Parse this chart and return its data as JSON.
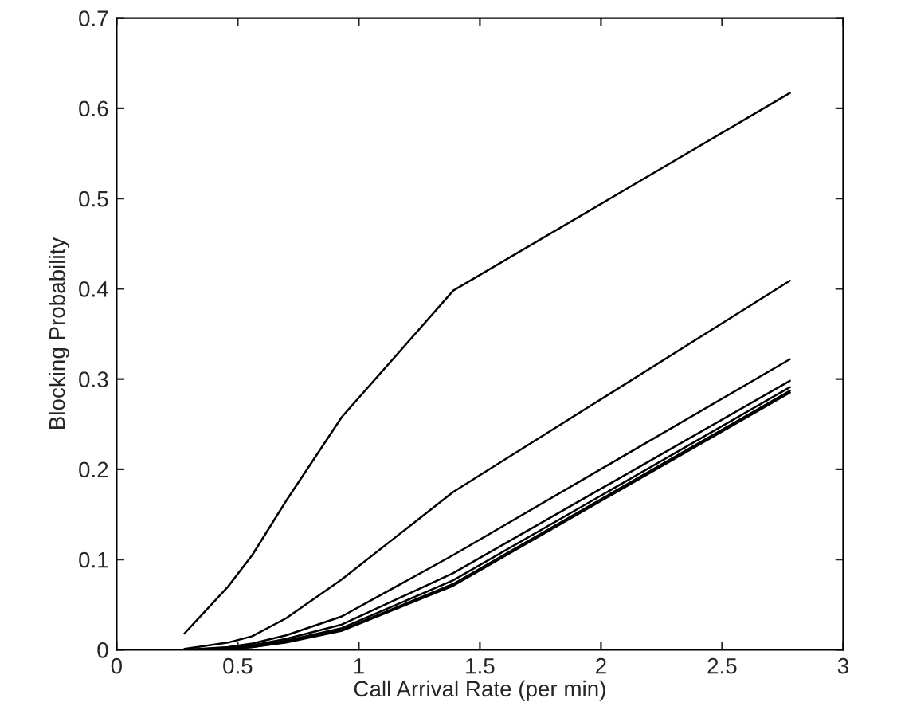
{
  "chart_data": {
    "type": "line",
    "xlabel": "Call Arrival Rate (per min)",
    "ylabel": "Blocking Probability",
    "x": [
      0.28,
      0.46,
      0.56,
      0.7,
      0.93,
      1.39,
      2.78
    ],
    "series": [
      {
        "color": "#000000",
        "values": [
          0.018,
          0.07,
          0.105,
          0.165,
          0.258,
          0.398,
          0.617
        ]
      },
      {
        "color": "#000000",
        "values": [
          0.001,
          0.008,
          0.015,
          0.035,
          0.078,
          0.175,
          0.409
        ]
      },
      {
        "color": "#000000",
        "values": [
          0.0,
          0.003,
          0.007,
          0.016,
          0.037,
          0.105,
          0.322
        ]
      },
      {
        "color": "#000000",
        "values": [
          0.0,
          0.002,
          0.005,
          0.012,
          0.028,
          0.085,
          0.298
        ]
      },
      {
        "color": "#000000",
        "values": [
          0.0,
          0.001,
          0.004,
          0.01,
          0.024,
          0.077,
          0.291
        ]
      },
      {
        "color": "#000000",
        "values": [
          0.0,
          0.001,
          0.003,
          0.009,
          0.022,
          0.073,
          0.287
        ]
      },
      {
        "color": "#000000",
        "values": [
          0.0,
          0.001,
          0.003,
          0.008,
          0.021,
          0.071,
          0.285
        ]
      }
    ],
    "xlim": [
      0,
      3
    ],
    "xticks": [
      0,
      0.5,
      1,
      1.5,
      2,
      2.5,
      3
    ],
    "ylim": [
      0,
      0.7
    ],
    "yticks": [
      0,
      0.1,
      0.2,
      0.3,
      0.4,
      0.5,
      0.6,
      0.7
    ],
    "grid": false,
    "marker": "none",
    "line_style": "solid"
  }
}
